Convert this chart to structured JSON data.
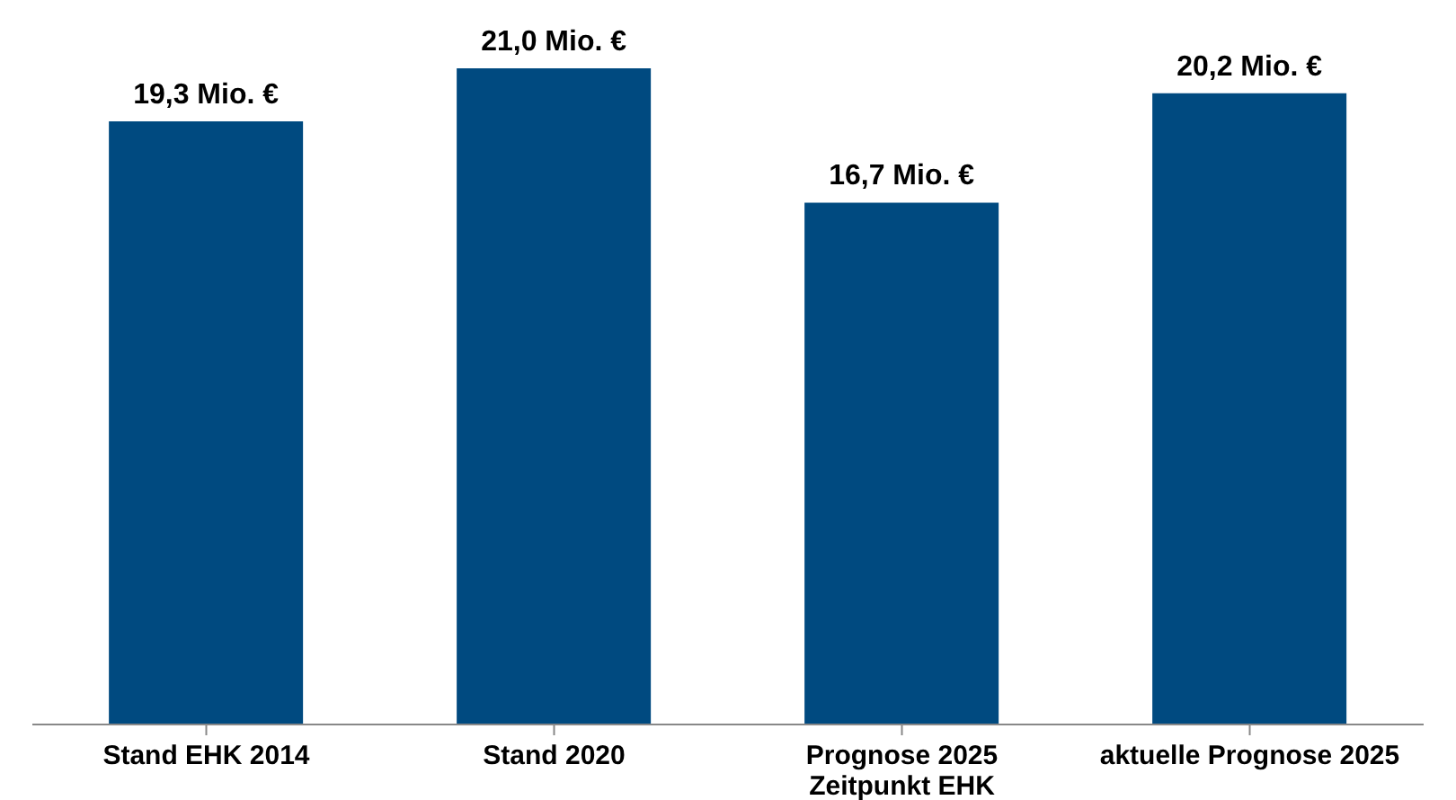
{
  "chart_data": {
    "type": "bar",
    "categories": [
      "Stand EHK 2014",
      "Stand 2020",
      "Prognose 2025\nZeitpunkt EHK",
      "aktuelle Prognose 2025"
    ],
    "values": [
      19.3,
      21.0,
      16.7,
      20.2
    ],
    "color": "#004a80",
    "value_labels": [
      "19,3 Mio. €",
      "21,0 Mio. €",
      "16,7 Mio. €",
      "20,2 Mio. €"
    ],
    "tick_labels": "x",
    "grid": false,
    "legend": false
  }
}
